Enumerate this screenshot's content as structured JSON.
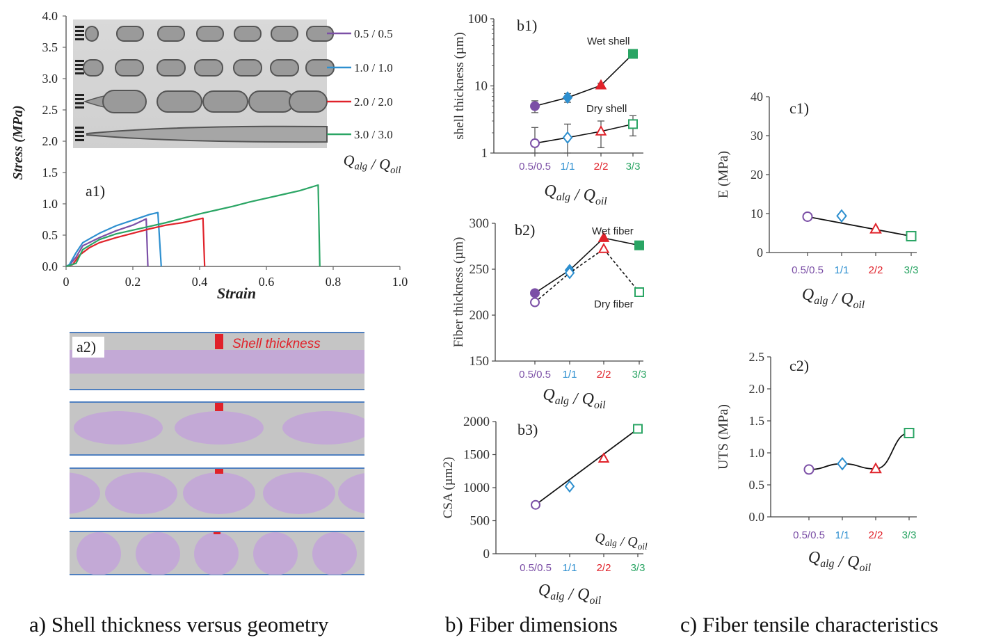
{
  "captions": {
    "a": "a) Shell thickness versus geometry",
    "b": "b) Fiber dimensions",
    "c": "c) Fiber tensile characteristics"
  },
  "palette": {
    "purple": "#7b4fa6",
    "blue": "#2d8fcf",
    "red": "#e0222a",
    "green": "#2aa564",
    "shell_fill": "#c5c5c5",
    "core_fill": "#c3a9d6",
    "channel_line": "#4f7fbf"
  },
  "chart_data": [
    {
      "id": "a1",
      "type": "line",
      "panel_label": "a1)",
      "xlabel": "Strain",
      "ylabel": "Stress (MPa)",
      "xlim": [
        0,
        1.0
      ],
      "ylim": [
        0,
        4.0
      ],
      "xticks": [
        "0",
        "0.2",
        "0.4",
        "0.6",
        "0.8",
        "1.0"
      ],
      "yticks": [
        "0.0",
        "0.5",
        "1.0",
        "1.5",
        "2.0",
        "2.5",
        "3.0",
        "3.5",
        "4.0"
      ],
      "legend_title": "Q_alg / Q_oil",
      "series": [
        {
          "name": "0.5 / 0.5",
          "color": "purple",
          "points": [
            [
              0,
              0
            ],
            [
              0.01,
              0.02
            ],
            [
              0.03,
              0.15
            ],
            [
              0.05,
              0.33
            ],
            [
              0.1,
              0.46
            ],
            [
              0.15,
              0.57
            ],
            [
              0.2,
              0.66
            ],
            [
              0.24,
              0.76
            ],
            [
              0.245,
              0
            ]
          ]
        },
        {
          "name": "1.0 / 1.0",
          "color": "blue",
          "points": [
            [
              0,
              0
            ],
            [
              0.01,
              0.03
            ],
            [
              0.03,
              0.22
            ],
            [
              0.05,
              0.38
            ],
            [
              0.1,
              0.53
            ],
            [
              0.15,
              0.65
            ],
            [
              0.2,
              0.74
            ],
            [
              0.25,
              0.83
            ],
            [
              0.275,
              0.86
            ],
            [
              0.285,
              0
            ]
          ]
        },
        {
          "name": "2.0 / 2.0",
          "color": "red",
          "points": [
            [
              0,
              0
            ],
            [
              0.02,
              0.03
            ],
            [
              0.04,
              0.18
            ],
            [
              0.07,
              0.3
            ],
            [
              0.1,
              0.38
            ],
            [
              0.15,
              0.46
            ],
            [
              0.2,
              0.53
            ],
            [
              0.25,
              0.6
            ],
            [
              0.3,
              0.66
            ],
            [
              0.35,
              0.7
            ],
            [
              0.41,
              0.77
            ],
            [
              0.415,
              0
            ]
          ]
        },
        {
          "name": "3.0 / 3.0",
          "color": "green",
          "points": [
            [
              0,
              0
            ],
            [
              0.03,
              0.05
            ],
            [
              0.05,
              0.27
            ],
            [
              0.1,
              0.43
            ],
            [
              0.15,
              0.52
            ],
            [
              0.2,
              0.58
            ],
            [
              0.25,
              0.64
            ],
            [
              0.3,
              0.7
            ],
            [
              0.35,
              0.77
            ],
            [
              0.4,
              0.84
            ],
            [
              0.45,
              0.9
            ],
            [
              0.5,
              0.96
            ],
            [
              0.55,
              1.03
            ],
            [
              0.6,
              1.09
            ],
            [
              0.65,
              1.15
            ],
            [
              0.7,
              1.21
            ],
            [
              0.755,
              1.3
            ],
            [
              0.76,
              0
            ]
          ]
        }
      ]
    },
    {
      "id": "b1",
      "type": "scatter",
      "panel_label": "b1)",
      "ylabel": "shell thickness (µm)",
      "xlabel": "Q_alg / Q_oil",
      "yscale": "log",
      "ylim": [
        1,
        100
      ],
      "yticks": [
        "1",
        "10",
        "100"
      ],
      "categories": [
        "0.5/0.5",
        "1/1",
        "2/2",
        "3/3"
      ],
      "series": [
        {
          "name": "Wet shell",
          "values": [
            5.0,
            6.7,
            10.2,
            30
          ],
          "errors": [
            1.0,
            1.0,
            0.8,
            0
          ],
          "filled": true
        },
        {
          "name": "Dry shell",
          "values": [
            1.4,
            1.7,
            2.1,
            2.7
          ],
          "errors": [
            1.0,
            1.0,
            0.9,
            0.9
          ],
          "filled": false
        }
      ]
    },
    {
      "id": "b2",
      "type": "scatter",
      "panel_label": "b2)",
      "ylabel": "Fiber thickness (µm)",
      "xlabel": "Q_alg / Q_oil",
      "ylim": [
        150,
        300
      ],
      "yticks": [
        "150",
        "200",
        "250",
        "300"
      ],
      "categories": [
        "0.5/0.5",
        "1/1",
        "2/2",
        "3/3"
      ],
      "series": [
        {
          "name": "Wet fiber",
          "values": [
            224,
            249,
            284,
            276
          ],
          "filled": true
        },
        {
          "name": "Dry fiber",
          "values": [
            214,
            246,
            272,
            225
          ],
          "filled": false
        }
      ]
    },
    {
      "id": "b3",
      "type": "scatter",
      "panel_label": "b3)",
      "ylabel": "CSA (µm2)",
      "xlabel": "Q_alg / Q_oil",
      "inner_label": "Q_alg / Q_oil",
      "ylim": [
        0,
        2000
      ],
      "yticks": [
        "0",
        "500",
        "1000",
        "1500",
        "2000"
      ],
      "categories": [
        "0.5/0.5",
        "1/1",
        "2/2",
        "3/3"
      ],
      "series": [
        {
          "values": [
            740,
            1020,
            1440,
            1890
          ]
        }
      ]
    },
    {
      "id": "c1",
      "type": "scatter",
      "panel_label": "c1)",
      "ylabel": "E (MPa)",
      "xlabel": "Q_alg / Q_oil",
      "ylim": [
        0,
        40
      ],
      "yticks": [
        "0",
        "10",
        "20",
        "30",
        "40"
      ],
      "categories": [
        "0.5/0.5",
        "1/1",
        "2/2",
        "3/3"
      ],
      "series": [
        {
          "values": [
            9.2,
            9.4,
            6.0,
            4.2
          ]
        }
      ]
    },
    {
      "id": "c2",
      "type": "scatter",
      "panel_label": "c2)",
      "ylabel": "UTS (MPa)",
      "xlabel": "Q_alg / Q_oil",
      "ylim": [
        0,
        2.5
      ],
      "yticks": [
        "0.0",
        "0.5",
        "1.0",
        "1.5",
        "2.0",
        "2.5"
      ],
      "categories": [
        "0.5/0.5",
        "1/1",
        "2/2",
        "3/3"
      ],
      "series": [
        {
          "values": [
            0.74,
            0.83,
            0.75,
            1.31
          ]
        }
      ]
    }
  ],
  "schematic": {
    "panel_label": "a2)",
    "shell_label": "Shell thickness"
  },
  "category_colors": [
    "purple",
    "blue",
    "red",
    "green"
  ],
  "marker_shapes": [
    "circle",
    "diamond",
    "triangle",
    "square"
  ]
}
